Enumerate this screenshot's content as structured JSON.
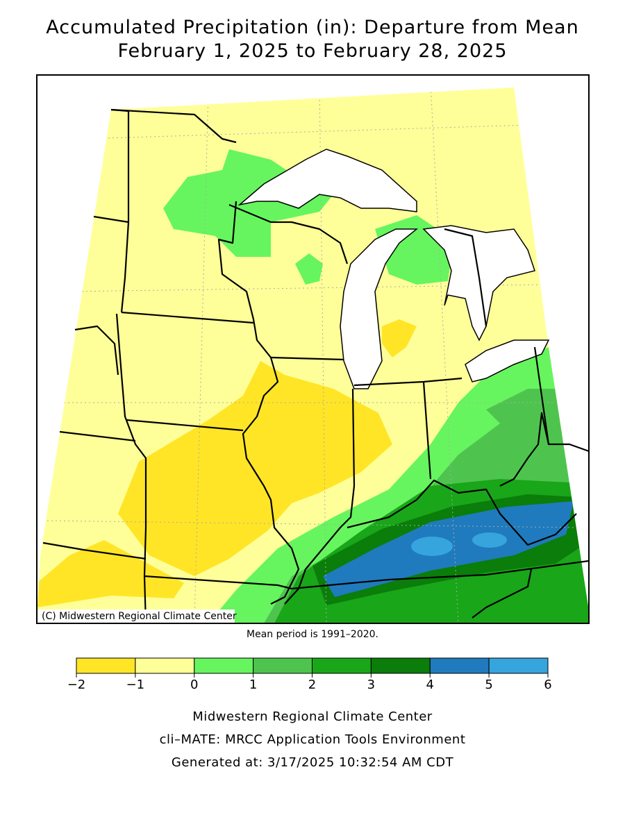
{
  "title": [
    "Accumulated Precipitation (in): Departure from Mean",
    "February 1, 2025 to February 28, 2025"
  ],
  "map": {
    "credit": "(C) Midwestern Regional Climate Center",
    "note": "Mean period is 1991–2020."
  },
  "legend": {
    "ticks": [
      {
        "value": -2,
        "label": "−2"
      },
      {
        "value": -1,
        "label": "−1"
      },
      0,
      1,
      2,
      3,
      4,
      5,
      6
    ],
    "colors": [
      "#ffe526",
      "#ffff99",
      "#66f55e",
      "#4ec44e",
      "#19a619",
      "#0a7d0a",
      "#1f7bbd",
      "#36a4dd"
    ]
  },
  "footer": [
    "Midwestern Regional Climate Center",
    "cli–MATE: MRCC Application Tools Environment",
    "Generated at: 3/17/2025 10:32:54 AM CDT"
  ]
}
